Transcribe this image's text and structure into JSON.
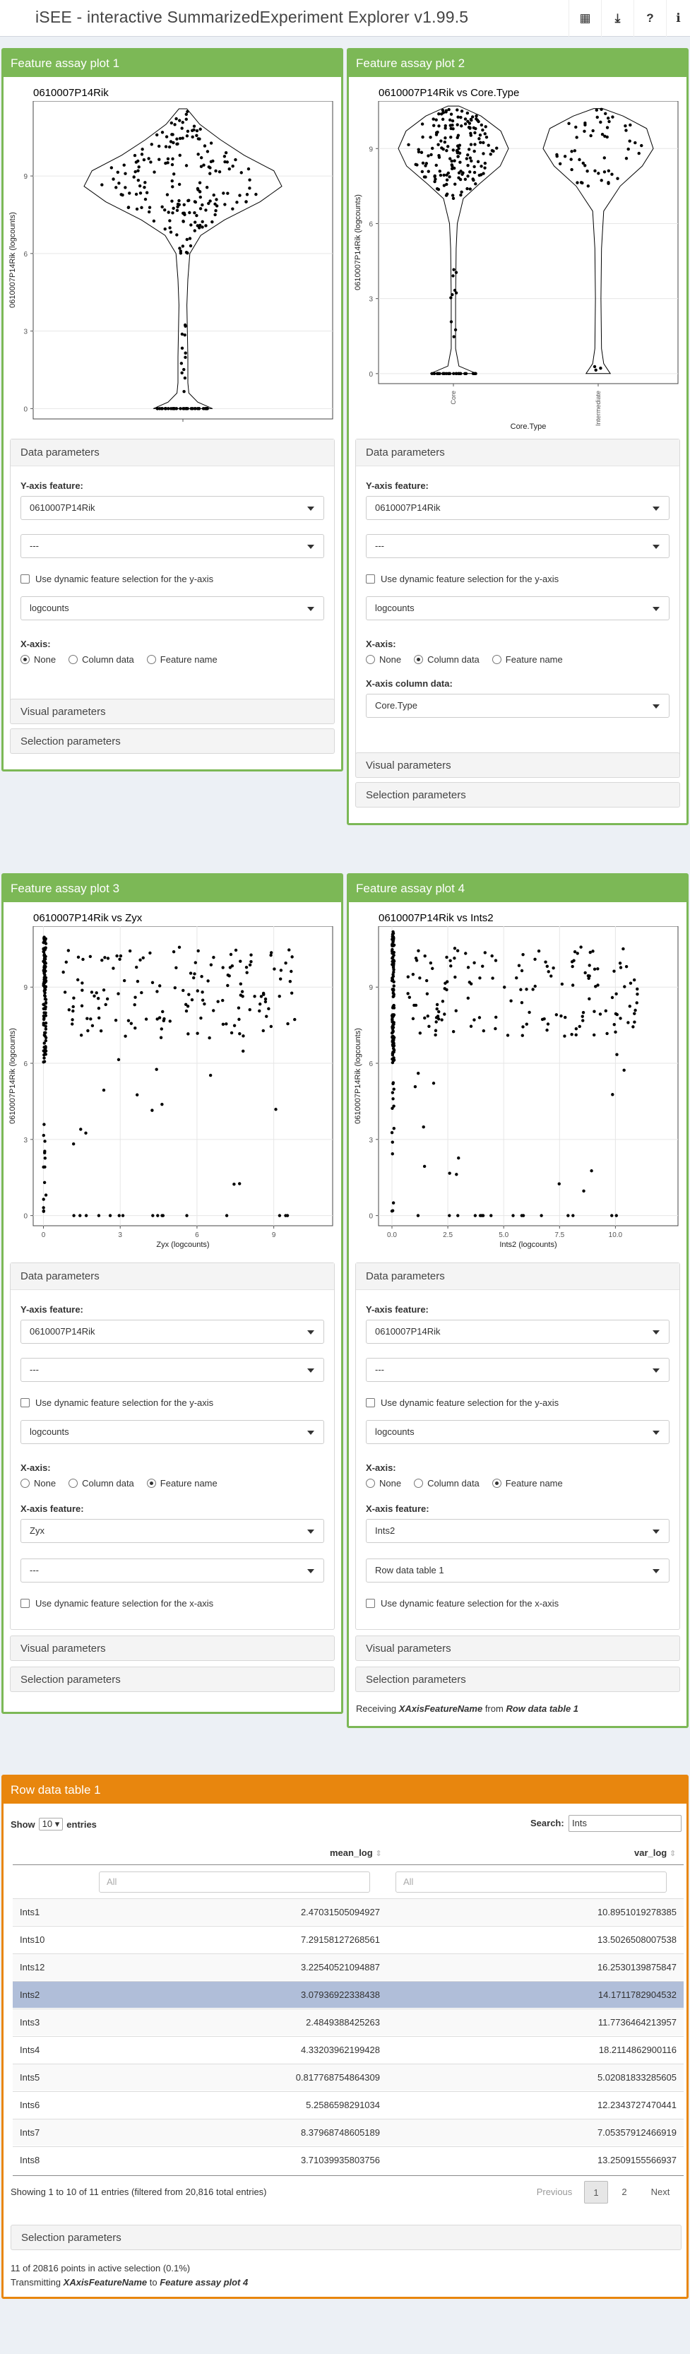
{
  "app": {
    "title": "iSEE - interactive SummarizedExperiment Explorer v1.99.5"
  },
  "header_buttons": [
    {
      "icon": "grid-icon",
      "glyph": "▦"
    },
    {
      "icon": "download-icon",
      "glyph": "⤓"
    },
    {
      "icon": "help-icon",
      "glyph": "?"
    },
    {
      "icon": "info-icon",
      "glyph": "ℹ"
    }
  ],
  "panels": [
    {
      "title": "Feature assay plot 1",
      "plot_title": "0610007P14Rik",
      "data_params": {
        "header": "Data parameters",
        "y_label": "Y-axis feature:",
        "y_feature": "0610007P14Rik",
        "y_source": "---",
        "dynamic_y": "Use dynamic feature selection for the y-axis",
        "assay": "logcounts",
        "x_label": "X-axis:",
        "x_options": [
          "None",
          "Column data",
          "Feature name"
        ],
        "x_selected": 0
      },
      "visual": "Visual parameters",
      "selection": "Selection parameters"
    },
    {
      "title": "Feature assay plot 2",
      "plot_title": "0610007P14Rik vs Core.Type",
      "data_params": {
        "header": "Data parameters",
        "y_label": "Y-axis feature:",
        "y_feature": "0610007P14Rik",
        "y_source": "---",
        "dynamic_y": "Use dynamic feature selection for the y-axis",
        "assay": "logcounts",
        "x_label": "X-axis:",
        "x_options": [
          "None",
          "Column data",
          "Feature name"
        ],
        "x_selected": 1,
        "x_col_label": "X-axis column data:",
        "x_col_value": "Core.Type"
      },
      "visual": "Visual parameters",
      "selection": "Selection parameters"
    },
    {
      "title": "Feature assay plot 3",
      "plot_title": "0610007P14Rik vs Zyx",
      "data_params": {
        "header": "Data parameters",
        "y_label": "Y-axis feature:",
        "y_feature": "0610007P14Rik",
        "y_source": "---",
        "dynamic_y": "Use dynamic feature selection for the y-axis",
        "assay": "logcounts",
        "x_label": "X-axis:",
        "x_options": [
          "None",
          "Column data",
          "Feature name"
        ],
        "x_selected": 2,
        "x_feat_label": "X-axis feature:",
        "x_feature": "Zyx",
        "x_source": "---",
        "dynamic_x": "Use dynamic feature selection for the x-axis"
      },
      "visual": "Visual parameters",
      "selection": "Selection parameters"
    },
    {
      "title": "Feature assay plot 4",
      "plot_title": "0610007P14Rik vs Ints2",
      "data_params": {
        "header": "Data parameters",
        "y_label": "Y-axis feature:",
        "y_feature": "0610007P14Rik",
        "y_source": "---",
        "dynamic_y": "Use dynamic feature selection for the y-axis",
        "assay": "logcounts",
        "x_label": "X-axis:",
        "x_options": [
          "None",
          "Column data",
          "Feature name"
        ],
        "x_selected": 2,
        "x_feat_label": "X-axis feature:",
        "x_feature": "Ints2",
        "x_source": "Row data table 1",
        "dynamic_x": "Use dynamic feature selection for the x-axis"
      },
      "visual": "Visual parameters",
      "selection": "Selection parameters",
      "receiving": {
        "pre": "Receiving ",
        "field": "XAxisFeatureName",
        "mid": " from ",
        "src": "Row data table 1"
      }
    }
  ],
  "chart_data": [
    {
      "type": "violin",
      "title": "0610007P14Rik",
      "xlabel": "",
      "ylabel": "0610007P14Rik (logcounts)",
      "yticks": [
        0,
        3,
        6,
        9
      ],
      "ylim": [
        -0.4,
        11.9
      ]
    },
    {
      "type": "violin",
      "title": "0610007P14Rik vs Core.Type",
      "categories": [
        "Core",
        "Intermediate"
      ],
      "xlabel": "Core.Type",
      "ylabel": "0610007P14Rik (logcounts)",
      "yticks": [
        0,
        3,
        6,
        9
      ],
      "ylim": [
        -0.4,
        10.9
      ]
    },
    {
      "type": "scatter",
      "title": "0610007P14Rik vs Zyx",
      "xlabel": "Zyx (logcounts)",
      "ylabel": "0610007P14Rik (logcounts)",
      "xticks": [
        0,
        3,
        6,
        9
      ],
      "yticks": [
        0,
        3,
        6,
        9
      ],
      "xlim": [
        -0.4,
        11.3
      ],
      "ylim": [
        -0.4,
        11.4
      ]
    },
    {
      "type": "scatter",
      "title": "0610007P14Rik vs Ints2",
      "xlabel": "Ints2 (logcounts)",
      "ylabel": "0610007P14Rik (logcounts)",
      "xticks": [
        0.0,
        2.5,
        5.0,
        7.5,
        10.0
      ],
      "xtick_labels": [
        "0.0",
        "2.5",
        "5.0",
        "7.5",
        "10.0"
      ],
      "yticks": [
        0,
        3,
        6,
        9
      ],
      "xlim": [
        -0.6,
        12.8
      ],
      "ylim": [
        -0.4,
        11.4
      ]
    }
  ],
  "table": {
    "title": "Row data table 1",
    "show_label": "Show",
    "show_value": "10",
    "entries_label": "entries",
    "search_label": "Search:",
    "search_value": "Ints",
    "columns": [
      "mean_log",
      "var_log"
    ],
    "filter_placeholder": "All",
    "rows": [
      {
        "name": "Ints1",
        "mean": "2.47031505094927",
        "var": "10.8951019278385"
      },
      {
        "name": "Ints10",
        "mean": "7.29158127268561",
        "var": "13.5026508007538"
      },
      {
        "name": "Ints12",
        "mean": "3.22540521094887",
        "var": "16.2530139875847"
      },
      {
        "name": "Ints2",
        "mean": "3.07936922338438",
        "var": "14.1711782904532"
      },
      {
        "name": "Ints3",
        "mean": "2.4849388425263",
        "var": "11.7736464213957"
      },
      {
        "name": "Ints4",
        "mean": "4.33203962199428",
        "var": "18.2114862900116"
      },
      {
        "name": "Ints5",
        "mean": "0.817768754864309",
        "var": "5.02081833285605"
      },
      {
        "name": "Ints6",
        "mean": "5.2586598291034",
        "var": "12.2343727470441"
      },
      {
        "name": "Ints7",
        "mean": "8.37968748605189",
        "var": "7.05357912466919"
      },
      {
        "name": "Ints8",
        "mean": "3.71039935803756",
        "var": "13.2509155566937"
      }
    ],
    "selected_row": 3,
    "info": "Showing 1 to 10 of 11 entries (filtered from 20,816 total entries)",
    "pager": {
      "previous": "Previous",
      "pages": [
        "1",
        "2"
      ],
      "next": "Next",
      "current": "1"
    },
    "selection": "Selection parameters",
    "status1": "11 of 20816 points in active selection (0.1%)",
    "status2": {
      "pre": "Transmitting ",
      "field": "XAxisFeatureName",
      "mid": " to ",
      "dst": "Feature assay plot 4"
    }
  }
}
